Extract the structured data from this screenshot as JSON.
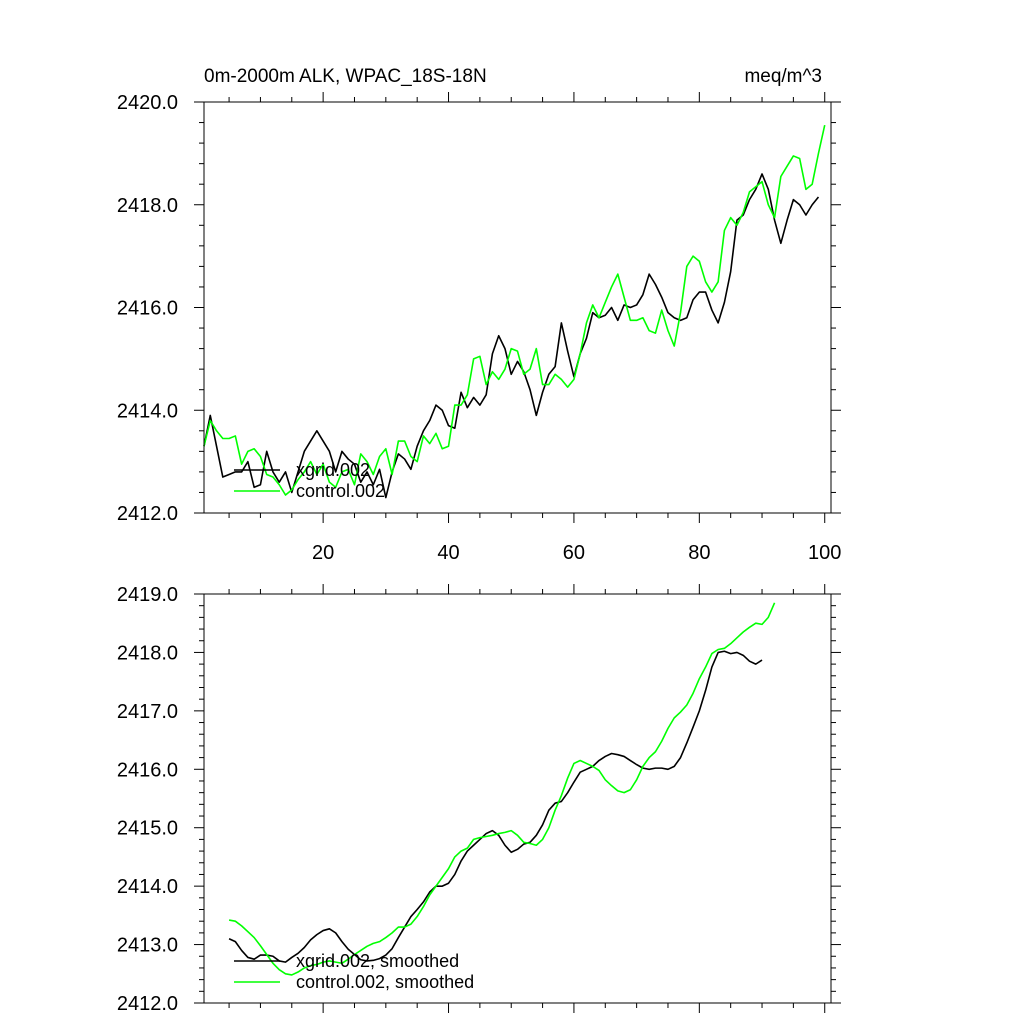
{
  "chart_data": [
    {
      "type": "line",
      "title": "0m-2000m ALK, WPAC_18S-18N",
      "units": "meq/m^3",
      "xlabel": "",
      "ylabel": "",
      "xlim": [
        1,
        101
      ],
      "ylim": [
        2412.0,
        2420.0
      ],
      "x_ticks": [
        20,
        40,
        60,
        80,
        100
      ],
      "x_tick_labels": [
        "20",
        "40",
        "60",
        "80",
        "100"
      ],
      "y_ticks": [
        2412.0,
        2414.0,
        2416.0,
        2418.0,
        2420.0
      ],
      "y_tick_labels": [
        "2412.0",
        "2414.0",
        "2416.0",
        "2418.0",
        "2420.0"
      ],
      "legend_position": "bottom-left",
      "series": [
        {
          "name": "xgrid.002",
          "color": "#000000",
          "x_start": 1,
          "values": [
            2413.3,
            2413.9,
            2413.3,
            2412.7,
            2412.75,
            2412.8,
            2412.8,
            2413.0,
            2412.5,
            2412.55,
            2413.2,
            2412.8,
            2412.6,
            2412.8,
            2412.4,
            2412.8,
            2413.2,
            2413.4,
            2413.6,
            2413.4,
            2413.2,
            2412.8,
            2413.2,
            2413.05,
            2412.95,
            2412.6,
            2412.8,
            2412.55,
            2412.85,
            2412.3,
            2412.8,
            2413.15,
            2413.05,
            2412.85,
            2413.3,
            2413.6,
            2413.8,
            2414.1,
            2414.0,
            2413.7,
            2413.65,
            2414.35,
            2414.05,
            2414.25,
            2414.1,
            2414.3,
            2415.1,
            2415.45,
            2415.2,
            2414.7,
            2414.95,
            2414.75,
            2414.4,
            2413.9,
            2414.35,
            2414.7,
            2414.85,
            2415.7,
            2415.15,
            2414.65,
            2415.1,
            2415.4,
            2415.9,
            2415.8,
            2415.85,
            2416.0,
            2415.75,
            2416.05,
            2416.0,
            2416.05,
            2416.25,
            2416.65,
            2416.45,
            2416.2,
            2415.9,
            2415.8,
            2415.75,
            2415.8,
            2416.15,
            2416.3,
            2416.3,
            2415.95,
            2415.7,
            2416.1,
            2416.7,
            2417.7,
            2417.8,
            2418.1,
            2418.3,
            2418.6,
            2418.3,
            2417.7,
            2417.25,
            2417.7,
            2418.1,
            2418.0,
            2417.8,
            2418.0,
            2418.15
          ]
        },
        {
          "name": "control.002",
          "color": "#00ff00",
          "x_start": 1,
          "values": [
            2413.3,
            2413.8,
            2413.6,
            2413.45,
            2413.45,
            2413.5,
            2412.95,
            2413.2,
            2413.25,
            2413.1,
            2412.75,
            2412.7,
            2412.55,
            2412.35,
            2412.45,
            2412.65,
            2412.8,
            2413.0,
            2412.75,
            2412.95,
            2412.6,
            2412.5,
            2412.8,
            2412.85,
            2412.55,
            2413.15,
            2413.0,
            2412.75,
            2413.1,
            2413.25,
            2412.75,
            2413.4,
            2413.4,
            2413.1,
            2413.0,
            2413.5,
            2413.35,
            2413.55,
            2413.25,
            2413.3,
            2414.1,
            2414.1,
            2414.3,
            2415.0,
            2415.05,
            2414.5,
            2414.75,
            2414.6,
            2414.8,
            2415.2,
            2415.15,
            2414.7,
            2414.8,
            2415.2,
            2414.5,
            2414.5,
            2414.7,
            2414.6,
            2414.45,
            2414.6,
            2415.1,
            2415.7,
            2416.05,
            2415.8,
            2416.1,
            2416.4,
            2416.65,
            2416.2,
            2415.75,
            2415.75,
            2415.8,
            2415.55,
            2415.5,
            2415.95,
            2415.55,
            2415.25,
            2415.9,
            2416.8,
            2417.0,
            2416.9,
            2416.5,
            2416.3,
            2416.5,
            2417.5,
            2417.75,
            2417.6,
            2417.85,
            2418.25,
            2418.35,
            2418.45,
            2418.0,
            2417.75,
            2418.55,
            2418.75,
            2418.95,
            2418.9,
            2418.3,
            2418.4,
            2419.0,
            2419.55
          ]
        }
      ]
    },
    {
      "type": "line",
      "title": "",
      "xlabel": "",
      "ylabel": "",
      "xlim": [
        1,
        101
      ],
      "ylim": [
        2412.0,
        2419.0
      ],
      "x_ticks": [
        20,
        40,
        60,
        80,
        100
      ],
      "x_tick_labels": [],
      "y_ticks": [
        2412.0,
        2413.0,
        2414.0,
        2415.0,
        2416.0,
        2417.0,
        2418.0,
        2419.0
      ],
      "y_tick_labels": [
        "2412.0",
        "2413.0",
        "2414.0",
        "2415.0",
        "2416.0",
        "2417.0",
        "2418.0",
        "2419.0"
      ],
      "legend_position": "bottom-left",
      "series": [
        {
          "name": "xgrid.002, smoothed",
          "color": "#000000",
          "x_start": 5,
          "values": [
            2413.1,
            2413.05,
            2412.9,
            2412.78,
            2412.75,
            2412.82,
            2412.82,
            2412.8,
            2412.72,
            2412.7,
            2412.78,
            2412.85,
            2412.95,
            2413.08,
            2413.17,
            2413.24,
            2413.27,
            2413.2,
            2413.05,
            2412.92,
            2412.83,
            2412.74,
            2412.72,
            2412.73,
            2412.76,
            2412.82,
            2412.93,
            2413.12,
            2413.3,
            2413.48,
            2413.6,
            2413.73,
            2413.9,
            2414.0,
            2414.0,
            2414.05,
            2414.2,
            2414.43,
            2414.6,
            2414.7,
            2414.8,
            2414.9,
            2414.95,
            2414.87,
            2414.7,
            2414.58,
            2414.63,
            2414.72,
            2414.75,
            2414.87,
            2415.05,
            2415.3,
            2415.42,
            2415.45,
            2415.6,
            2415.78,
            2415.95,
            2416.0,
            2416.05,
            2416.15,
            2416.22,
            2416.27,
            2416.25,
            2416.22,
            2416.15,
            2416.08,
            2416.02,
            2416.0,
            2416.02,
            2416.02,
            2416.0,
            2416.05,
            2416.2,
            2416.45,
            2416.72,
            2417.0,
            2417.35,
            2417.75,
            2418.0,
            2418.02,
            2417.98,
            2418.0,
            2417.95,
            2417.85,
            2417.8,
            2417.87
          ]
        },
        {
          "name": "control.002, smoothed",
          "color": "#00ff00",
          "x_start": 5,
          "values": [
            2413.42,
            2413.4,
            2413.32,
            2413.22,
            2413.12,
            2412.98,
            2412.83,
            2412.68,
            2412.57,
            2412.5,
            2412.48,
            2412.53,
            2412.6,
            2412.64,
            2412.66,
            2412.7,
            2412.72,
            2412.7,
            2412.68,
            2412.75,
            2412.83,
            2412.9,
            2412.97,
            2413.02,
            2413.05,
            2413.12,
            2413.2,
            2413.3,
            2413.3,
            2413.35,
            2413.48,
            2413.65,
            2413.85,
            2414.0,
            2414.15,
            2414.3,
            2414.5,
            2414.6,
            2414.65,
            2414.8,
            2414.83,
            2414.85,
            2414.87,
            2414.9,
            2414.92,
            2414.95,
            2414.87,
            2414.75,
            2414.73,
            2414.7,
            2414.8,
            2415.0,
            2415.3,
            2415.55,
            2415.85,
            2416.1,
            2416.15,
            2416.1,
            2416.05,
            2415.98,
            2415.82,
            2415.72,
            2415.63,
            2415.6,
            2415.65,
            2415.82,
            2416.05,
            2416.2,
            2416.3,
            2416.48,
            2416.7,
            2416.88,
            2416.98,
            2417.1,
            2417.3,
            2417.55,
            2417.75,
            2417.98,
            2418.05,
            2418.07,
            2418.15,
            2418.25,
            2418.35,
            2418.43,
            2418.5,
            2418.48,
            2418.6,
            2418.85
          ]
        }
      ]
    }
  ]
}
